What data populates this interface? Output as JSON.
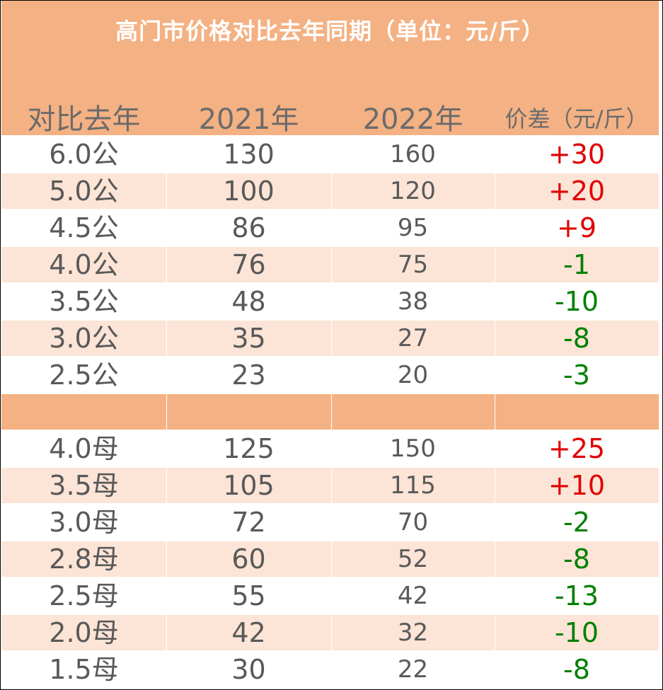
{
  "title": "高门市价格对比去年同期（单位：元/斤）",
  "headers": [
    "对比去年",
    "2021年",
    "2022年",
    "价差（元/斤）"
  ],
  "colors": {
    "header_band": "#f4b183",
    "alt_row": "#fce4d6",
    "positive": "#e00000",
    "negative": "#008000"
  },
  "rows_gong": [
    {
      "spec": "6.0公",
      "y2021": "130",
      "y2022": "160",
      "diff": "+30",
      "sign": "pos"
    },
    {
      "spec": "5.0公",
      "y2021": "100",
      "y2022": "120",
      "diff": "+20",
      "sign": "pos"
    },
    {
      "spec": "4.5公",
      "y2021": "86",
      "y2022": "95",
      "diff": "+9",
      "sign": "pos"
    },
    {
      "spec": "4.0公",
      "y2021": "76",
      "y2022": "75",
      "diff": "-1",
      "sign": "neg"
    },
    {
      "spec": "3.5公",
      "y2021": "48",
      "y2022": "38",
      "diff": "-10",
      "sign": "neg"
    },
    {
      "spec": "3.0公",
      "y2021": "35",
      "y2022": "27",
      "diff": "-8",
      "sign": "neg"
    },
    {
      "spec": "2.5公",
      "y2021": "23",
      "y2022": "20",
      "diff": "-3",
      "sign": "neg"
    }
  ],
  "rows_mu": [
    {
      "spec": "4.0母",
      "y2021": "125",
      "y2022": "150",
      "diff": "+25",
      "sign": "pos"
    },
    {
      "spec": "3.5母",
      "y2021": "105",
      "y2022": "115",
      "diff": "+10",
      "sign": "pos"
    },
    {
      "spec": "3.0母",
      "y2021": "72",
      "y2022": "70",
      "diff": "-2",
      "sign": "neg"
    },
    {
      "spec": "2.8母",
      "y2021": "60",
      "y2022": "52",
      "diff": "-8",
      "sign": "neg"
    },
    {
      "spec": "2.5母",
      "y2021": "55",
      "y2022": "42",
      "diff": "-13",
      "sign": "neg"
    },
    {
      "spec": "2.0母",
      "y2021": "42",
      "y2022": "32",
      "diff": "-10",
      "sign": "neg"
    },
    {
      "spec": "1.5母",
      "y2021": "30",
      "y2022": "22",
      "diff": "-8",
      "sign": "neg"
    }
  ]
}
